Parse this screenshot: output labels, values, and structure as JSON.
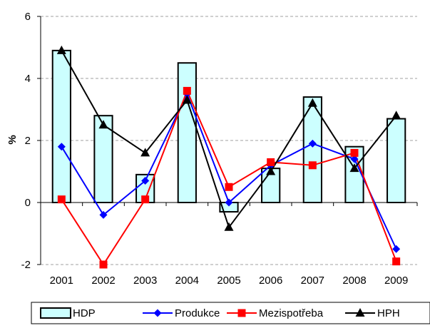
{
  "chart_data": {
    "type": "bar",
    "title": "",
    "xlabel": "",
    "ylabel": "%",
    "ylim": [
      -2,
      6
    ],
    "yticks": [
      -2,
      0,
      2,
      4,
      6
    ],
    "grid": "dashed horizontal",
    "legend_position": "bottom",
    "categories": [
      "2001",
      "2002",
      "2003",
      "2004",
      "2005",
      "2006",
      "2007",
      "2008",
      "2009"
    ],
    "series": [
      {
        "name": "HDP",
        "kind": "bar",
        "color": "#ccffff",
        "edge_color": "#000000",
        "values": [
          4.9,
          2.8,
          0.9,
          4.5,
          -0.3,
          1.1,
          3.4,
          1.8,
          2.7
        ]
      },
      {
        "name": "Produkce",
        "kind": "line",
        "marker": "diamond",
        "color": "#0000ff",
        "values": [
          1.8,
          -0.4,
          0.7,
          3.5,
          0.0,
          1.2,
          1.9,
          1.4,
          -1.5
        ]
      },
      {
        "name": "Mezispotřeba",
        "kind": "line",
        "marker": "square",
        "color": "#ff0000",
        "values": [
          0.1,
          -2.0,
          0.1,
          3.6,
          0.5,
          1.3,
          1.2,
          1.6,
          -1.9
        ]
      },
      {
        "name": "HPH",
        "kind": "line",
        "marker": "triangle",
        "color": "#000000",
        "values": [
          4.9,
          2.5,
          1.6,
          3.3,
          -0.8,
          1.0,
          3.2,
          1.1,
          2.8
        ]
      }
    ]
  }
}
